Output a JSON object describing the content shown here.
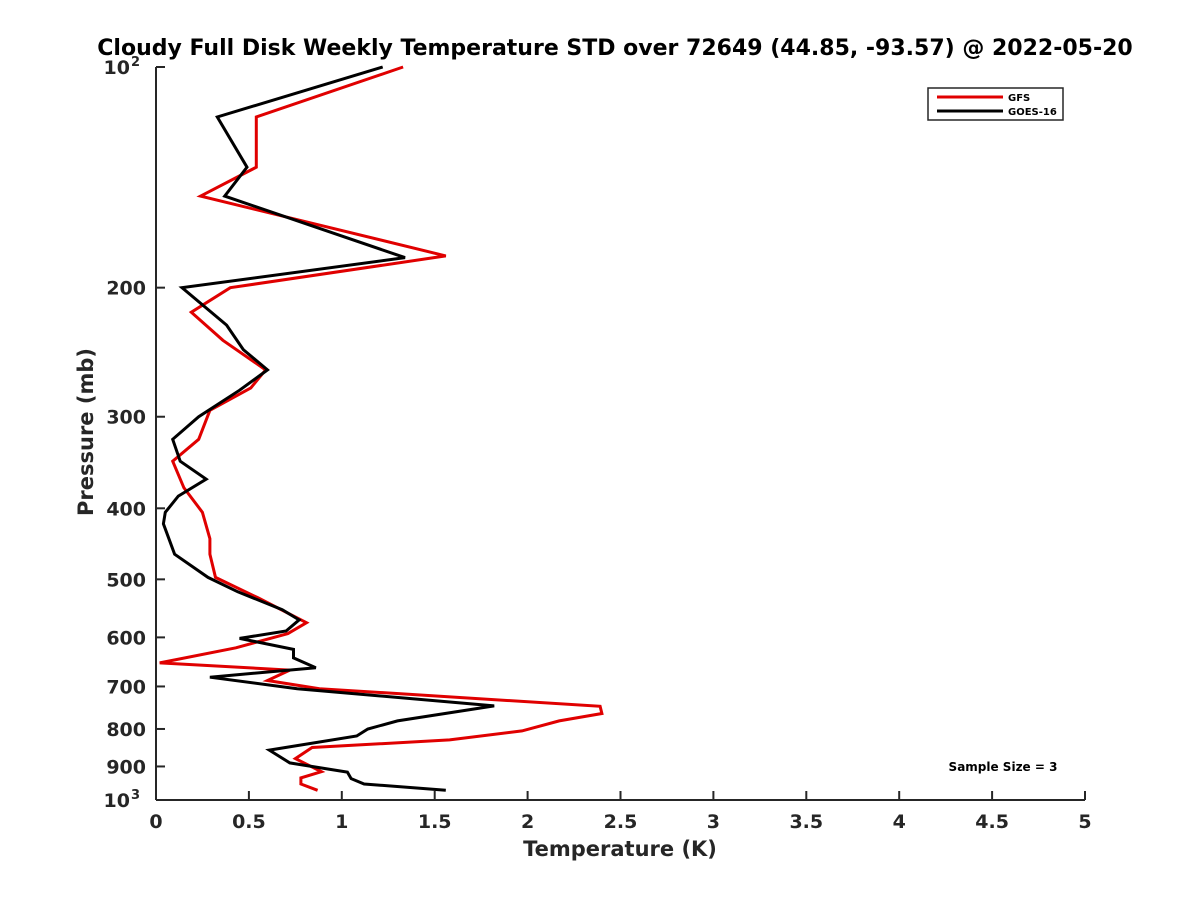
{
  "chart_data": {
    "type": "line",
    "title": "Cloudy Full Disk Weekly Temperature STD over 72649 (44.85, -93.57) @ 2022-05-20",
    "xlabel": "Temperature (K)",
    "ylabel": "Pressure (mb)",
    "xlim": [
      0,
      5
    ],
    "ylim": [
      1000,
      100
    ],
    "yscale": "log",
    "y_reversed": true,
    "x_ticks": [
      "0",
      "0.5",
      "1",
      "1.5",
      "2",
      "2.5",
      "3",
      "3.5",
      "4",
      "4.5",
      "5"
    ],
    "x_tick_values": [
      0,
      0.5,
      1,
      1.5,
      2,
      2.5,
      3,
      3.5,
      4,
      4.5,
      5
    ],
    "y_ticks": [
      {
        "value": 100,
        "label": "10",
        "sup": "2"
      },
      {
        "value": 200,
        "label": "200",
        "sup": ""
      },
      {
        "value": 300,
        "label": "300",
        "sup": ""
      },
      {
        "value": 400,
        "label": "400",
        "sup": ""
      },
      {
        "value": 500,
        "label": "500",
        "sup": ""
      },
      {
        "value": 600,
        "label": "600",
        "sup": ""
      },
      {
        "value": 700,
        "label": "700",
        "sup": ""
      },
      {
        "value": 800,
        "label": "800",
        "sup": ""
      },
      {
        "value": 900,
        "label": "900",
        "sup": ""
      },
      {
        "value": 1000,
        "label": "10",
        "sup": "3"
      }
    ],
    "grid": false,
    "legend_position": "top-right",
    "annotation": "Sample Size = 3",
    "series": [
      {
        "name": "GFS",
        "color": "#e00000",
        "points": [
          [
            1.33,
            100
          ],
          [
            0.54,
            117
          ],
          [
            0.54,
            137
          ],
          [
            0.24,
            150
          ],
          [
            1.56,
            181
          ],
          [
            0.4,
            200
          ],
          [
            0.19,
            216
          ],
          [
            0.36,
            236
          ],
          [
            0.59,
            259
          ],
          [
            0.51,
            274
          ],
          [
            0.29,
            294
          ],
          [
            0.23,
            322
          ],
          [
            0.09,
            345
          ],
          [
            0.15,
            375
          ],
          [
            0.25,
            405
          ],
          [
            0.29,
            440
          ],
          [
            0.29,
            462
          ],
          [
            0.32,
            497
          ],
          [
            0.55,
            530
          ],
          [
            0.81,
            573
          ],
          [
            0.71,
            593
          ],
          [
            0.43,
            620
          ],
          [
            0.02,
            650
          ],
          [
            0.72,
            665
          ],
          [
            0.6,
            687
          ],
          [
            0.88,
            705
          ],
          [
            2.39,
            745
          ],
          [
            2.4,
            762
          ],
          [
            2.17,
            780
          ],
          [
            1.97,
            805
          ],
          [
            1.58,
            828
          ],
          [
            0.84,
            848
          ],
          [
            0.75,
            878
          ],
          [
            0.89,
            915
          ],
          [
            0.78,
            933
          ],
          [
            0.78,
            951
          ],
          [
            0.87,
            970
          ]
        ]
      },
      {
        "name": "GOES-16",
        "color": "#000000",
        "points": [
          [
            1.22,
            100
          ],
          [
            0.33,
            117
          ],
          [
            0.49,
            137
          ],
          [
            0.37,
            150
          ],
          [
            1.34,
            182
          ],
          [
            0.14,
            200
          ],
          [
            0.38,
            225
          ],
          [
            0.47,
            243
          ],
          [
            0.6,
            259
          ],
          [
            0.45,
            276
          ],
          [
            0.23,
            300
          ],
          [
            0.09,
            322
          ],
          [
            0.13,
            345
          ],
          [
            0.27,
            365
          ],
          [
            0.12,
            385
          ],
          [
            0.05,
            405
          ],
          [
            0.04,
            420
          ],
          [
            0.1,
            462
          ],
          [
            0.28,
            497
          ],
          [
            0.44,
            520
          ],
          [
            0.68,
            550
          ],
          [
            0.77,
            568
          ],
          [
            0.7,
            588
          ],
          [
            0.45,
            602
          ],
          [
            0.74,
            623
          ],
          [
            0.74,
            640
          ],
          [
            0.86,
            660
          ],
          [
            0.29,
            680
          ],
          [
            0.76,
            705
          ],
          [
            1.82,
            744
          ],
          [
            1.3,
            780
          ],
          [
            1.14,
            800
          ],
          [
            1.08,
            818
          ],
          [
            0.61,
            855
          ],
          [
            0.72,
            890
          ],
          [
            1.03,
            916
          ],
          [
            1.05,
            935
          ],
          [
            1.12,
            951
          ],
          [
            1.56,
            970
          ]
        ]
      }
    ]
  }
}
